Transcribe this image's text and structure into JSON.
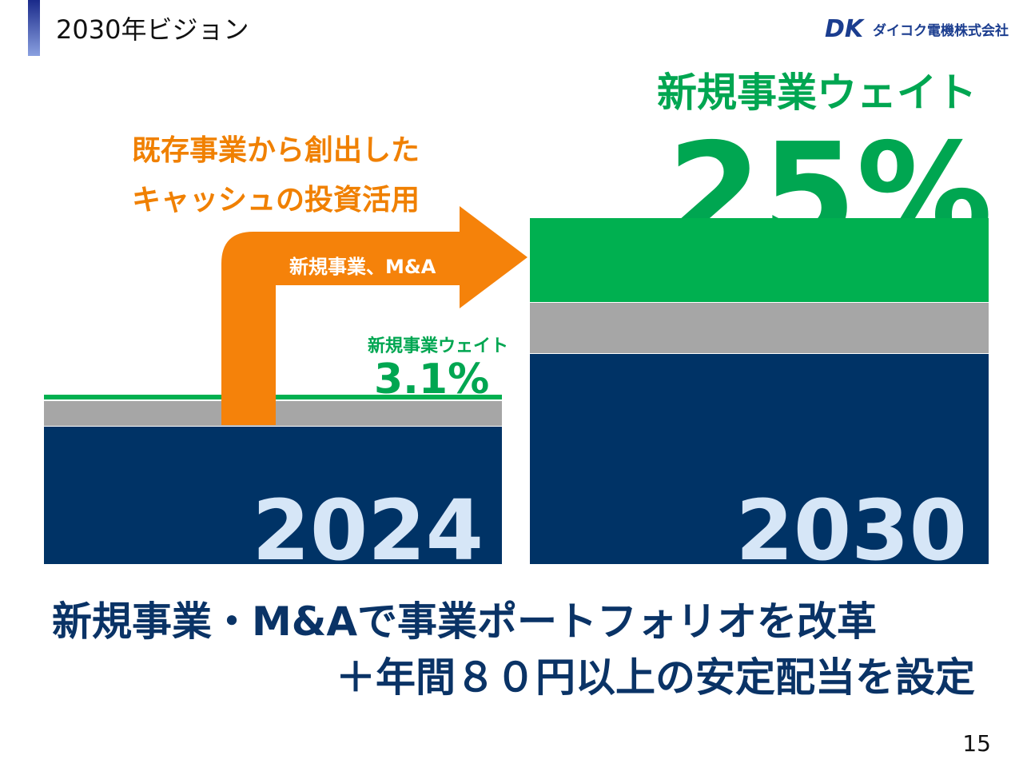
{
  "header": {
    "title": "2030年ビジョン",
    "logo_mark": "DK",
    "logo": "ダイコク電機株式会社"
  },
  "arrow": {
    "caption": [
      "既存事業から創出した",
      "キャッシュの投資活用"
    ],
    "label": "新規事業、M&A"
  },
  "left": {
    "label": "新規事業ウェイト",
    "value": "3.1%",
    "year": "2024"
  },
  "right": {
    "label": "新規事業ウェイト",
    "value": "25%",
    "year": "2030"
  },
  "footer": {
    "lines": [
      "新規事業・M&Aで事業ポートフォリオを改革",
      "＋年間８０円以上の安定配当を設定"
    ],
    "page": "15"
  }
}
